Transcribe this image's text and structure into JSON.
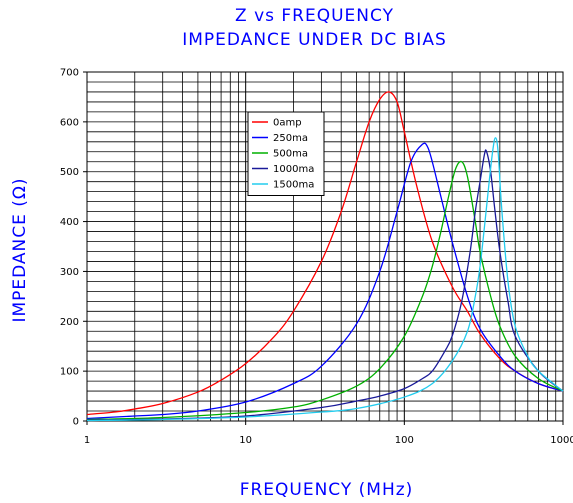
{
  "chart_data": {
    "type": "line",
    "title": "Z vs FREQUENCY",
    "subtitle": "IMPEDANCE UNDER DC BIAS",
    "xlabel": "FREQUENCY (MHz)",
    "ylabel": "IMPEDANCE (Ω)",
    "xscale": "log",
    "xlim": [
      1,
      1000
    ],
    "ylim": [
      0,
      700
    ],
    "grid": true,
    "legend_position": "top-center",
    "xticks": [
      "1",
      "10",
      "100",
      "1000"
    ],
    "yticks": [
      "0",
      "100",
      "200",
      "300",
      "400",
      "500",
      "600",
      "700"
    ],
    "series": [
      {
        "name": "0amp",
        "color": "#ff0000",
        "x": [
          1,
          1.5,
          2,
          3,
          5,
          7,
          10,
          15,
          20,
          30,
          40,
          50,
          60,
          70,
          80,
          90,
          100,
          120,
          150,
          200,
          250,
          300,
          400,
          500,
          700,
          1000
        ],
        "y": [
          13,
          18,
          24,
          35,
          58,
          82,
          115,
          168,
          220,
          320,
          420,
          520,
          600,
          645,
          660,
          640,
          580,
          470,
          360,
          270,
          220,
          175,
          125,
          100,
          75,
          60
        ]
      },
      {
        "name": "250ma",
        "color": "#0000ff",
        "x": [
          1,
          2,
          3,
          5,
          10,
          20,
          30,
          50,
          70,
          90,
          110,
          130,
          140,
          150,
          170,
          200,
          250,
          300,
          400,
          500,
          700,
          1000
        ],
        "y": [
          5,
          10,
          13,
          20,
          38,
          75,
          110,
          195,
          300,
          420,
          520,
          555,
          550,
          520,
          450,
          360,
          250,
          185,
          130,
          100,
          75,
          60
        ]
      },
      {
        "name": "500ma",
        "color": "#00b000",
        "x": [
          1,
          3,
          10,
          20,
          30,
          50,
          70,
          100,
          130,
          150,
          170,
          190,
          210,
          230,
          250,
          280,
          300,
          350,
          400,
          500,
          700,
          1000
        ],
        "y": [
          3,
          7,
          17,
          28,
          42,
          70,
          105,
          170,
          250,
          310,
          380,
          450,
          505,
          520,
          490,
          400,
          340,
          250,
          190,
          130,
          85,
          60
        ]
      },
      {
        "name": "1000ma",
        "color": "#1a1a99",
        "x": [
          1,
          3,
          10,
          30,
          50,
          70,
          100,
          130,
          150,
          180,
          200,
          230,
          260,
          280,
          300,
          320,
          330,
          350,
          370,
          400,
          450,
          500,
          700,
          1000
        ],
        "y": [
          2,
          4,
          10,
          27,
          40,
          50,
          65,
          85,
          100,
          140,
          170,
          240,
          340,
          420,
          480,
          535,
          540,
          500,
          430,
          340,
          240,
          170,
          100,
          60
        ]
      },
      {
        "name": "1500ma",
        "color": "#22ccee",
        "x": [
          1,
          3,
          10,
          30,
          50,
          100,
          150,
          200,
          250,
          280,
          300,
          320,
          340,
          360,
          375,
          390,
          410,
          450,
          500,
          600,
          700,
          1000
        ],
        "y": [
          1,
          3,
          8,
          18,
          25,
          48,
          75,
          120,
          180,
          250,
          310,
          390,
          470,
          540,
          568,
          540,
          430,
          280,
          190,
          130,
          100,
          60
        ]
      }
    ]
  }
}
